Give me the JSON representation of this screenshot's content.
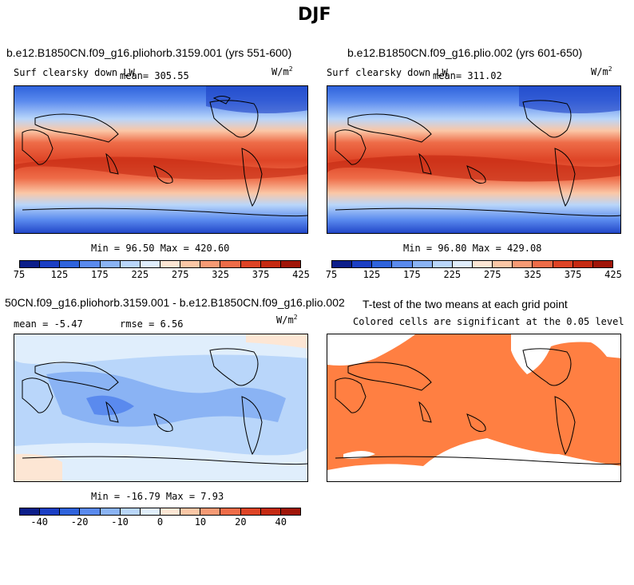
{
  "figure_title": "DJF",
  "units_label": "W/m",
  "units_exp": "2",
  "palette": [
    "#0c1e8a",
    "#1b3fc4",
    "#2f63dc",
    "#5a8aee",
    "#8ab3f4",
    "#b9d6fa",
    "#e0eefc",
    "#fde6d4",
    "#fbc7a6",
    "#f69a74",
    "#ee6c48",
    "#de4426",
    "#c52a12",
    "#a01508"
  ],
  "chart_data": [
    {
      "type": "heatmap",
      "panel": "case1",
      "title": "b.e12.B1850CN.f09_g16.pliohorb.3159.001 (yrs 551-600)",
      "subtitle": "Surf clearsky down LW",
      "mean_label": "mean= 305.55",
      "stats_label": "Min =  96.50 Max = 420.60",
      "min": 96.5,
      "max": 420.6,
      "mean": 305.55,
      "levels": [
        75,
        100,
        125,
        150,
        175,
        200,
        225,
        250,
        275,
        300,
        325,
        350,
        375,
        400,
        425
      ],
      "ticks": [
        "75",
        "125",
        "175",
        "225",
        "275",
        "325",
        "375",
        "425"
      ]
    },
    {
      "type": "heatmap",
      "panel": "case2",
      "title": "b.e12.B1850CN.f09_g16.plio.002 (yrs 601-650)",
      "subtitle": "Surf clearsky down LW",
      "mean_label": "mean= 311.02",
      "stats_label": "Min =  96.80 Max = 429.08",
      "min": 96.8,
      "max": 429.08,
      "mean": 311.02,
      "levels": [
        75,
        100,
        125,
        150,
        175,
        200,
        225,
        250,
        275,
        300,
        325,
        350,
        375,
        400,
        425
      ],
      "ticks": [
        "75",
        "125",
        "175",
        "225",
        "275",
        "325",
        "375",
        "425"
      ]
    },
    {
      "type": "heatmap",
      "panel": "difference",
      "title": "50CN.f09_g16.pliohorb.3159.001 - b.e12.B1850CN.f09_g16.plio.002",
      "mean_label": "mean =   -5.47",
      "rmse_label": "rmse =   6.56",
      "stats_label": "Min = -16.79 Max =   7.93",
      "min": -16.79,
      "max": 7.93,
      "mean": -5.47,
      "rmse": 6.56,
      "levels": [
        -50,
        -40,
        -30,
        -20,
        -15,
        -10,
        -5,
        0,
        5,
        10,
        15,
        20,
        30,
        40,
        50
      ],
      "ticks": [
        "-40",
        "-20",
        "-10",
        "0",
        "10",
        "20",
        "40"
      ]
    },
    {
      "type": "heatmap",
      "panel": "ttest",
      "title": "T-test of the two means at each grid point",
      "subtitle": "Colored cells are significant at the 0.05 level",
      "significant_color": "#ff7f42"
    }
  ]
}
